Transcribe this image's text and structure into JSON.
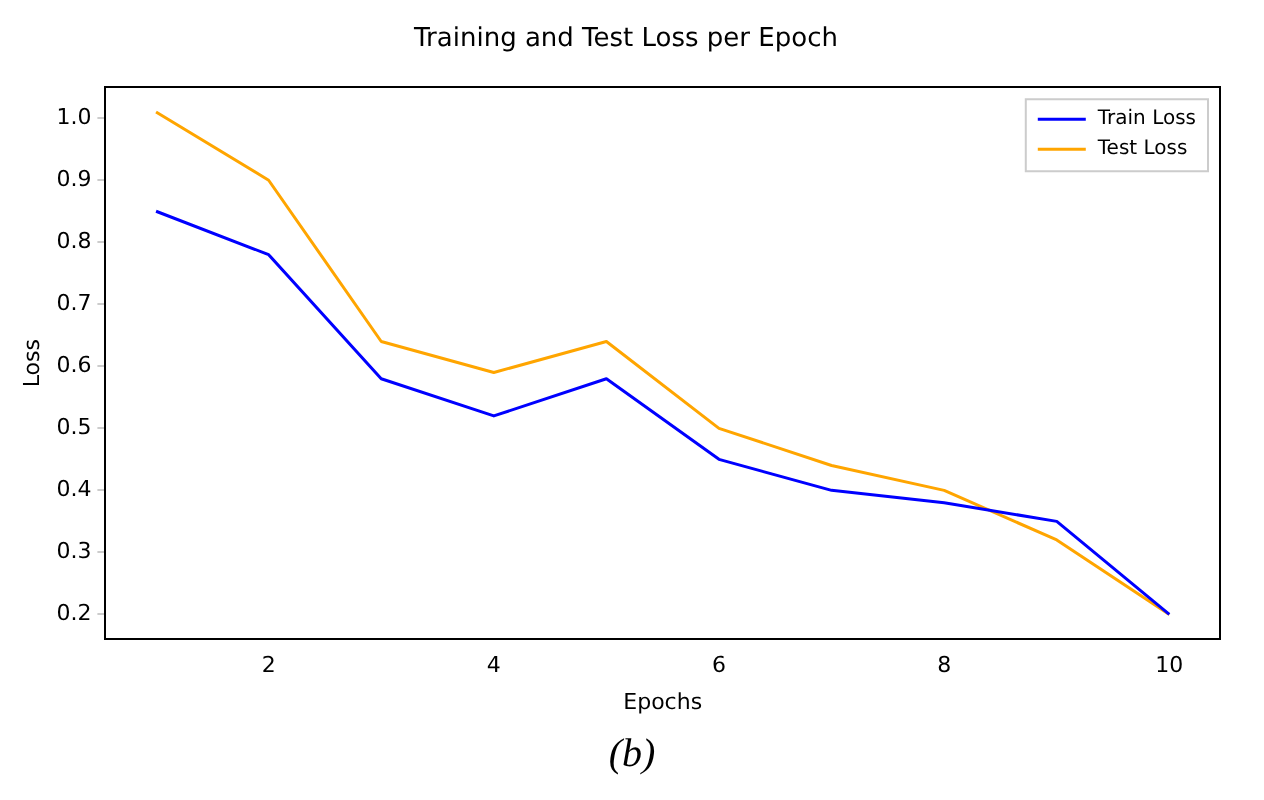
{
  "chart_data": {
    "type": "line",
    "title": "Training and Test Loss per Epoch",
    "xlabel": "Epochs",
    "ylabel": "Loss",
    "x": [
      1,
      2,
      3,
      4,
      5,
      6,
      7,
      8,
      9,
      10
    ],
    "series": [
      {
        "name": "Train Loss",
        "color": "#0000ff",
        "values": [
          0.85,
          0.78,
          0.58,
          0.52,
          0.58,
          0.45,
          0.4,
          0.38,
          0.35,
          0.2
        ]
      },
      {
        "name": "Test Loss",
        "color": "#ffa500",
        "values": [
          1.01,
          0.9,
          0.64,
          0.59,
          0.64,
          0.5,
          0.44,
          0.4,
          0.32,
          0.2
        ]
      }
    ],
    "xlim": [
      0.55,
      10.45
    ],
    "xticks": [
      2,
      4,
      6,
      8,
      10
    ],
    "ylim": [
      0.16,
      1.05
    ],
    "yticks": [
      0.2,
      0.3,
      0.4,
      0.5,
      0.6,
      0.7,
      0.8,
      0.9,
      {
        "value": 1,
        "label": "1.0"
      }
    ],
    "grid": false,
    "legend": "top right",
    "marker": "none",
    "line_style": "solid",
    "annotations": [
      "(b)"
    ]
  }
}
